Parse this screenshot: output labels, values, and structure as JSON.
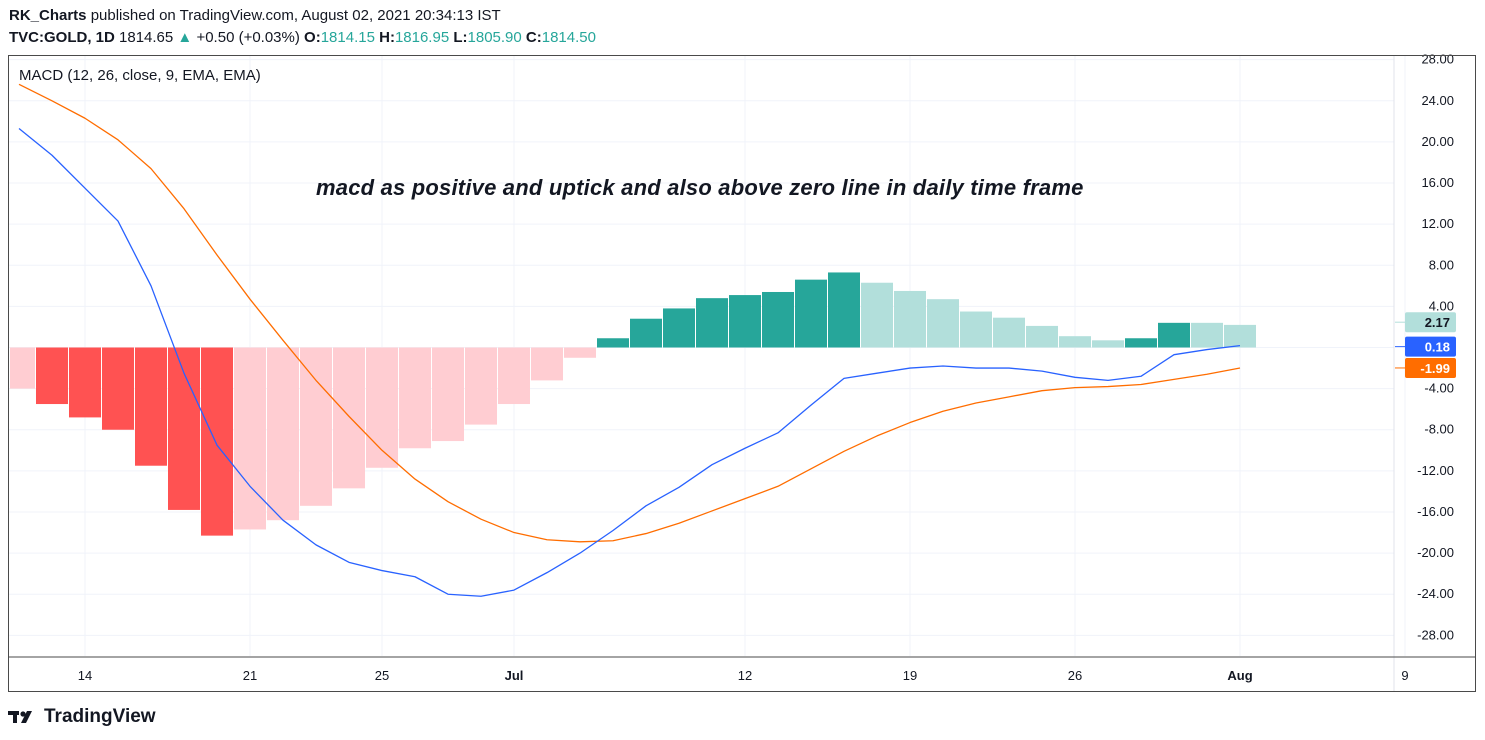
{
  "header": {
    "author": "RK_Charts",
    "published": " published on TradingView.com, August 02, 2021 20:34:13 IST",
    "symbol": "TVC:GOLD, 1D",
    "price": "1814.65",
    "change": "+0.50 (+0.03%)",
    "o_label": "O:",
    "o": "1814.15",
    "h_label": "H:",
    "h": "1816.95",
    "l_label": "L:",
    "l": "1805.90",
    "c_label": "C:",
    "c": "1814.50"
  },
  "indicator": {
    "legend": "MACD (12, 26, close, 9, EMA, EMA)",
    "annotation": "macd as positive and uptick and also above zero line in daily time frame"
  },
  "footer": {
    "brand": "TradingView"
  },
  "colors": {
    "macd_line": "#2962ff",
    "signal_line": "#ff6d00",
    "hist_neg_strong": "#ff5252",
    "hist_neg_weak": "#ffcdd2",
    "hist_pos_strong": "#26a69a",
    "hist_pos_weak": "#b2dfdb"
  },
  "chart_data": {
    "type": "bar",
    "ylim": [
      -30,
      28
    ],
    "y_ticks": [
      "28.00",
      "24.00",
      "20.00",
      "16.00",
      "12.00",
      "8.00",
      "4.00",
      "0.00",
      "-4.00",
      "-8.00",
      "-12.00",
      "-16.00",
      "-20.00",
      "-24.00",
      "-28.00"
    ],
    "x_tick_labels": [
      {
        "label": "14",
        "index": 2
      },
      {
        "label": "21",
        "index": 7
      },
      {
        "label": "25",
        "index": 11
      },
      {
        "label": "Jul",
        "index": 15
      },
      {
        "label": "12",
        "index": 22
      },
      {
        "label": "19",
        "index": 27
      },
      {
        "label": "26",
        "index": 32
      },
      {
        "label": "Aug",
        "index": 37
      },
      {
        "label": "9",
        "index": 42
      }
    ],
    "series": [
      {
        "name": "Histogram",
        "values": [
          -4.0,
          -5.5,
          -6.8,
          -8.0,
          -11.5,
          -15.8,
          -18.3,
          -17.7,
          -16.8,
          -15.4,
          -13.7,
          -11.7,
          -9.8,
          -9.1,
          -7.5,
          -5.5,
          -3.2,
          -1.0,
          0.9,
          2.8,
          3.8,
          4.8,
          5.1,
          5.4,
          6.6,
          7.3,
          6.3,
          5.5,
          4.7,
          3.5,
          2.9,
          2.1,
          1.1,
          0.7,
          0.9,
          2.4,
          2.4,
          2.2
        ],
        "colors": [
          "weak",
          "strong",
          "strong",
          "strong",
          "strong",
          "strong",
          "strong",
          "weak",
          "weak",
          "weak",
          "weak",
          "weak",
          "weak",
          "weak",
          "weak",
          "weak",
          "weak",
          "weak",
          "strong",
          "strong",
          "strong",
          "strong",
          "strong",
          "strong",
          "strong",
          "strong",
          "weak",
          "weak",
          "weak",
          "weak",
          "weak",
          "weak",
          "weak",
          "weak",
          "strong",
          "strong",
          "weak",
          "weak"
        ]
      },
      {
        "name": "MACD",
        "values": [
          21.3,
          18.7,
          15.5,
          12.3,
          6.0,
          -2.5,
          -9.5,
          -13.5,
          -16.8,
          -19.2,
          -20.9,
          -21.7,
          -22.3,
          -24.0,
          -24.2,
          -23.6,
          -21.9,
          -20.0,
          -17.8,
          -15.4,
          -13.6,
          -11.4,
          -9.8,
          -8.3,
          -5.6,
          -3.0,
          -2.5,
          -2.0,
          -1.8,
          -2.0,
          -2.0,
          -2.3,
          -2.9,
          -3.2,
          -2.8,
          -0.7,
          -0.2,
          0.18
        ]
      },
      {
        "name": "Signal",
        "values": [
          25.6,
          24.0,
          22.3,
          20.2,
          17.4,
          13.5,
          9.0,
          4.7,
          0.7,
          -3.2,
          -6.7,
          -10.0,
          -12.8,
          -15.0,
          -16.7,
          -18.0,
          -18.7,
          -18.9,
          -18.8,
          -18.1,
          -17.1,
          -15.9,
          -14.7,
          -13.5,
          -11.8,
          -10.1,
          -8.6,
          -7.3,
          -6.2,
          -5.4,
          -4.8,
          -4.2,
          -3.9,
          -3.8,
          -3.6,
          -3.1,
          -2.6,
          -1.99
        ]
      }
    ],
    "price_tags": [
      {
        "value": 2.17,
        "label": "2.17"
      },
      {
        "value": 0.18,
        "label": "0.18"
      },
      {
        "value": -1.99,
        "label": "-1.99"
      }
    ]
  }
}
